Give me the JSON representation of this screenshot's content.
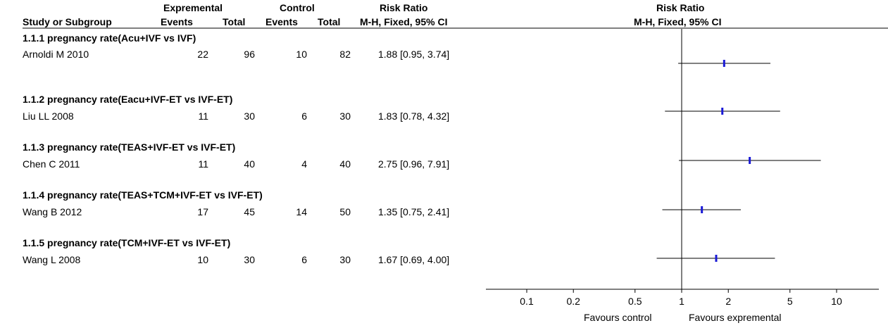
{
  "header": {
    "group1": "Exprementa",
    "group1_suffix": "l",
    "group2": "Control",
    "rr_title": "Risk Ratio",
    "study_col": "Study or Subgroup",
    "events1": "Events",
    "total1": "Total",
    "events2": "Events",
    "total2": "Total",
    "method": "M-H, Fixed, 95% CI",
    "plot_title": "Risk Ratio",
    "plot_method": "M-H, Fixed, 95% CI"
  },
  "subgroups": [
    {
      "title": "1.1.1 pregnancy rate(Acu+IVF vs IVF)",
      "study": {
        "name": "Arnoldi M 2010",
        "events1": "22",
        "total1": "96",
        "events2": "10",
        "total2": "82",
        "ci_text": "1.88 [0.95, 3.74]"
      }
    },
    {
      "title": "1.1.2 pregnancy rate(Eacu+IVF-ET vs IVF-ET)",
      "study": {
        "name": "Liu  LL 2008",
        "events1": "11",
        "total1": "30",
        "events2": "6",
        "total2": "30",
        "ci_text": "1.83 [0.78, 4.32]"
      }
    },
    {
      "title": "1.1.3 pregnancy rate(TEAS+IVF-ET vs IVF-ET)",
      "study": {
        "name": "Chen  C 2011",
        "events1": "11",
        "total1": "40",
        "events2": "4",
        "total2": "40",
        "ci_text": "2.75 [0.96, 7.91]"
      }
    },
    {
      "title": "1.1.4 pregnancy rate(TEAS+TCM+IVF-ET vs IVF-ET)",
      "study": {
        "name": "Wang  B 2012",
        "events1": "17",
        "total1": "45",
        "events2": "14",
        "total2": "50",
        "ci_text": "1.35 [0.75, 2.41]"
      }
    },
    {
      "title": "1.1.5 pregnancy rate(TCM+IVF-ET vs IVF-ET)",
      "study": {
        "name": "Wang  L 2008",
        "events1": "10",
        "total1": "30",
        "events2": "6",
        "total2": "30",
        "ci_text": "1.67 [0.69, 4.00]"
      }
    }
  ],
  "chart_data": {
    "type": "forest",
    "x_scale": "log",
    "xlim": [
      0.05,
      20
    ],
    "null_value": 1,
    "ticks": [
      0.1,
      0.2,
      0.5,
      1,
      2,
      5,
      10
    ],
    "tick_labels": [
      "0.1",
      "0.2",
      "0.5",
      "1",
      "2",
      "5",
      "10"
    ],
    "favours_left": "Favours control",
    "favours_right": "Favours exprementa",
    "favours_right_suffix": "l",
    "studies": [
      {
        "name": "Arnoldi M 2010",
        "rr": 1.88,
        "lower": 0.95,
        "upper": 3.74
      },
      {
        "name": "Liu  LL 2008",
        "rr": 1.83,
        "lower": 0.78,
        "upper": 4.32
      },
      {
        "name": "Chen  C 2011",
        "rr": 2.75,
        "lower": 0.96,
        "upper": 7.91
      },
      {
        "name": "Wang  B 2012",
        "rr": 1.35,
        "lower": 0.75,
        "upper": 2.41
      },
      {
        "name": "Wang  L 2008",
        "rr": 1.67,
        "lower": 0.69,
        "upper": 4.0
      }
    ],
    "colors": {
      "marker": "#1a1ad6",
      "line": "#000000"
    }
  }
}
